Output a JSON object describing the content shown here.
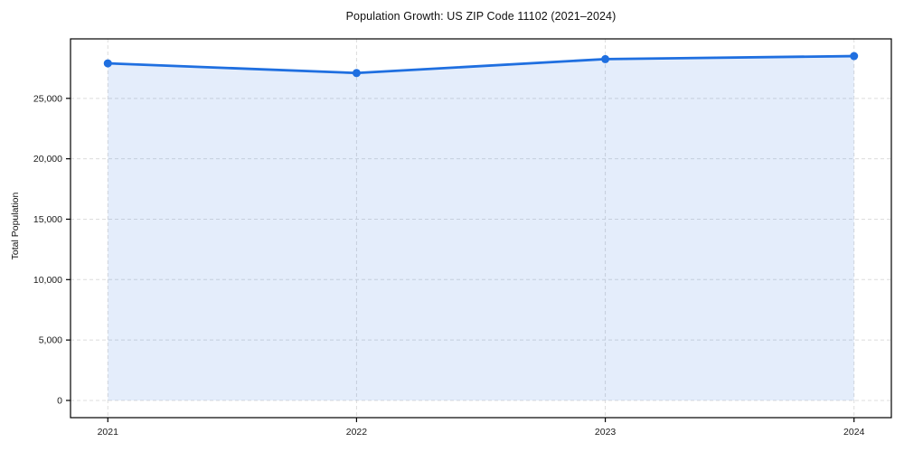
{
  "figure": {
    "background": "#ffffff"
  },
  "chart_data": {
    "type": "area",
    "title": "Population Growth: US ZIP Code 11102 (2021–2024)",
    "xlabel": "",
    "ylabel": "Total Population",
    "x": [
      2021,
      2022,
      2023,
      2024
    ],
    "x_tick_labels": [
      "2021",
      "2022",
      "2023",
      "2024"
    ],
    "series": [
      {
        "name": "Total Population",
        "values": [
          27900,
          27100,
          28250,
          28500
        ]
      }
    ],
    "y_ticks": [
      0,
      5000,
      10000,
      15000,
      20000,
      25000
    ],
    "y_tick_labels": [
      "0",
      "5,000",
      "10,000",
      "15,000",
      "20,000",
      "25,000"
    ],
    "xlim": [
      2020.85,
      2024.15
    ],
    "ylim": [
      -1425,
      29925
    ],
    "baseline": 0,
    "grid": true,
    "grid_style": "dashed",
    "legend_position": "none",
    "colors": {
      "line": "#1f6fe0",
      "marker": "#1f6fe0",
      "fill": "rgba(31, 111, 224, 0.12)",
      "grid": "#dcdcdc",
      "axis": "#000000",
      "tick_text": "#1a1a1a",
      "title_text": "#111111"
    }
  }
}
